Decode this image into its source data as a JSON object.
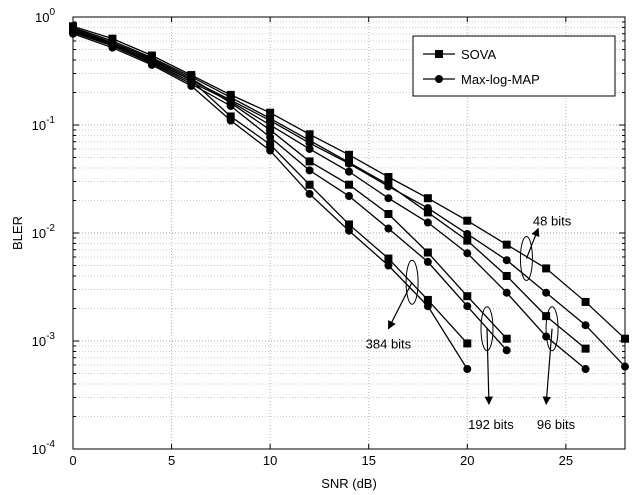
{
  "chart_data": {
    "type": "line",
    "xlabel": "SNR (dB)",
    "ylabel": "BLER",
    "xlim": [
      0,
      28
    ],
    "ylim": [
      0.0001,
      1
    ],
    "yscale": "log",
    "x_ticks": [
      0,
      5,
      10,
      15,
      20,
      25
    ],
    "y_ticks": [
      {
        "value": 1,
        "base": "10",
        "exp": "0"
      },
      {
        "value": 0.1,
        "base": "10",
        "exp": "-1"
      },
      {
        "value": 0.01,
        "base": "10",
        "exp": "-2"
      },
      {
        "value": 0.001,
        "base": "10",
        "exp": "-3"
      },
      {
        "value": 0.0001,
        "base": "10",
        "exp": "-4"
      }
    ],
    "grid": true,
    "legend_position": "top-right",
    "legend": [
      {
        "name": "SOVA",
        "marker": "square"
      },
      {
        "name": "Max-log-MAP",
        "marker": "circle"
      }
    ],
    "series": [
      {
        "algorithm": "SOVA",
        "block": "48 bits",
        "marker": "square",
        "x": [
          0,
          2,
          4,
          6,
          8,
          10,
          12,
          14,
          16,
          18,
          20,
          22,
          24,
          26,
          28
        ],
        "values": [
          0.82,
          0.63,
          0.44,
          0.29,
          0.19,
          0.13,
          0.082,
          0.053,
          0.033,
          0.021,
          0.013,
          0.0078,
          0.0047,
          0.0023,
          0.00105
        ]
      },
      {
        "algorithm": "Max-log-MAP",
        "block": "48 bits",
        "marker": "circle",
        "x": [
          0,
          2,
          4,
          6,
          8,
          10,
          12,
          14,
          16,
          18,
          20,
          22,
          24,
          26,
          28
        ],
        "values": [
          0.76,
          0.57,
          0.39,
          0.26,
          0.17,
          0.11,
          0.068,
          0.044,
          0.027,
          0.017,
          0.0098,
          0.0056,
          0.0028,
          0.0014,
          0.00058
        ]
      },
      {
        "algorithm": "SOVA",
        "block": "96 bits",
        "marker": "square",
        "x": [
          0,
          2,
          4,
          6,
          8,
          10,
          12,
          14,
          16,
          18,
          20,
          22,
          24,
          26
        ],
        "values": [
          0.8,
          0.6,
          0.42,
          0.28,
          0.18,
          0.115,
          0.072,
          0.045,
          0.028,
          0.0155,
          0.0085,
          0.004,
          0.0017,
          0.00085
        ]
      },
      {
        "algorithm": "Max-log-MAP",
        "block": "96 bits",
        "marker": "circle",
        "x": [
          0,
          2,
          4,
          6,
          8,
          10,
          12,
          14,
          16,
          18,
          20,
          22,
          24,
          26
        ],
        "values": [
          0.74,
          0.55,
          0.38,
          0.25,
          0.165,
          0.1,
          0.06,
          0.037,
          0.021,
          0.0125,
          0.0065,
          0.0028,
          0.0011,
          0.00055
        ]
      },
      {
        "algorithm": "SOVA",
        "block": "192 bits",
        "marker": "square",
        "x": [
          0,
          2,
          4,
          6,
          8,
          10,
          12,
          14,
          16,
          18,
          20,
          22
        ],
        "values": [
          0.78,
          0.58,
          0.41,
          0.27,
          0.16,
          0.09,
          0.046,
          0.028,
          0.015,
          0.0066,
          0.0026,
          0.00105
        ]
      },
      {
        "algorithm": "Max-log-MAP",
        "block": "192 bits",
        "marker": "circle",
        "x": [
          0,
          2,
          4,
          6,
          8,
          10,
          12,
          14,
          16,
          18,
          20,
          22
        ],
        "values": [
          0.72,
          0.54,
          0.37,
          0.24,
          0.15,
          0.077,
          0.038,
          0.022,
          0.011,
          0.0054,
          0.0021,
          0.00082
        ]
      },
      {
        "algorithm": "SOVA",
        "block": "384 bits",
        "marker": "square",
        "x": [
          0,
          2,
          4,
          6,
          8,
          10,
          12,
          14,
          16,
          18,
          20
        ],
        "values": [
          0.76,
          0.56,
          0.4,
          0.26,
          0.12,
          0.066,
          0.028,
          0.012,
          0.0058,
          0.0024,
          0.00095
        ]
      },
      {
        "algorithm": "Max-log-MAP",
        "block": "384 bits",
        "marker": "circle",
        "x": [
          0,
          2,
          4,
          6,
          8,
          10,
          12,
          14,
          16,
          18,
          20
        ],
        "values": [
          0.7,
          0.52,
          0.36,
          0.23,
          0.11,
          0.058,
          0.023,
          0.0105,
          0.005,
          0.0021,
          0.00055
        ]
      }
    ],
    "annotations": [
      {
        "text": "48 bits",
        "label_x": 24.3,
        "label_y": 0.013,
        "ellipse_x": 23.0,
        "ellipse_y": 0.0058,
        "arrow_to_x": 23.6,
        "arrow_to_y": 0.011
      },
      {
        "text": "96 bits",
        "label_x": 24.5,
        "label_y": 0.00017,
        "ellipse_x": 24.3,
        "ellipse_y": 0.0013,
        "arrow_to_x": 24.0,
        "arrow_to_y": 0.00026
      },
      {
        "text": "192 bits",
        "label_x": 21.2,
        "label_y": 0.00017,
        "ellipse_x": 21.0,
        "ellipse_y": 0.0013,
        "arrow_to_x": 21.1,
        "arrow_to_y": 0.00026
      },
      {
        "text": "384 bits",
        "label_x": 16.0,
        "label_y": 0.00095,
        "ellipse_x": 17.2,
        "ellipse_y": 0.0035,
        "arrow_to_x": 16.0,
        "arrow_to_y": 0.0013
      }
    ]
  }
}
